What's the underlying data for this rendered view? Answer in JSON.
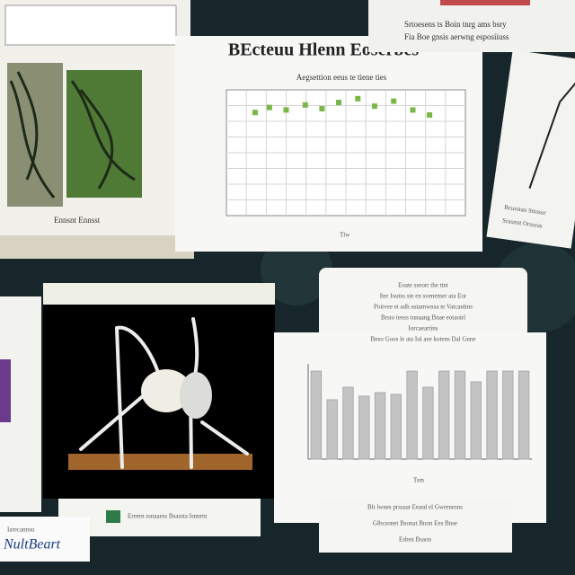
{
  "top_chart": {
    "title": "BEcteuu Hlenn Eoserbes",
    "subtitle": "Aegsettion eeus te tiene ties",
    "x_label": "Tlw",
    "points_x": [
      12,
      18,
      25,
      33,
      40,
      47,
      55,
      62,
      70,
      78,
      85
    ],
    "points_y": [
      82,
      86,
      84,
      88,
      85,
      90,
      93,
      87,
      91,
      84,
      80
    ],
    "xlim": [
      0,
      100
    ],
    "ylim": [
      0,
      100
    ],
    "color": "#7ab648"
  },
  "top_right_note": [
    "Srtoesens ts Boin tnrg ams bsry",
    "Fia Boe gnsis aerwng esposiiuss"
  ],
  "right_paper": [
    "Bcusstan Sttnsor",
    "Srasmtt Orsseas"
  ],
  "left_panel": {
    "caption": "Ennsnt Ennsst"
  },
  "bottom_left": {
    "caption": "Ereern ssnaaess Bsassta Isnnrtn",
    "card_small": "Iarecannsu",
    "card_title": "NultBeart"
  },
  "bar_chart": {
    "heading": [
      "Eoate sseorr the ttnt",
      "Iter Ioutss ste en svenemer ata Eor",
      "Poitvee et adh sutamwnsa te Vatcanlms",
      "Brsto teoss tunaang Bnae eotaoirl",
      "Iorcaeartins",
      "Bnso Goos le ata Iul aee kotens Dal Gnne"
    ],
    "values": [
      98,
      66,
      80,
      70,
      74,
      72,
      98,
      80,
      98,
      98,
      86,
      98,
      98,
      98
    ],
    "ylim": [
      0,
      100
    ],
    "color": "#c4c4c4",
    "x_label": "Tsm",
    "footer": [
      "Blt lwnes prssaat Eeasd el Gwrenesns",
      "Glbcsonet Bsonat Bnon Ees Bnse",
      "Esbsn Bsaon"
    ]
  }
}
